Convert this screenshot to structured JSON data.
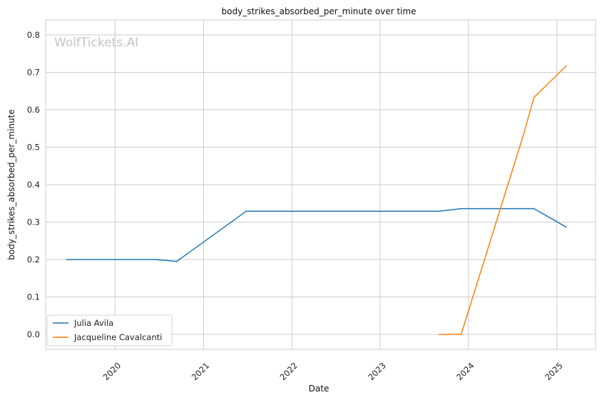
{
  "chart_data": {
    "type": "line",
    "title": "body_strikes_absorbed_per_minute over time",
    "xlabel": "Date",
    "ylabel": "body_strikes_absorbed_per_minute",
    "x_type": "date",
    "xlim": [
      "2019-03-20",
      "2025-06-10"
    ],
    "ylim": [
      -0.04,
      0.84
    ],
    "x_ticks": [
      "2020",
      "2021",
      "2022",
      "2023",
      "2024",
      "2025"
    ],
    "y_ticks": [
      "0.0",
      "0.1",
      "0.2",
      "0.3",
      "0.4",
      "0.5",
      "0.6",
      "0.7",
      "0.8"
    ],
    "grid": true,
    "legend_position": "lower-left",
    "watermark": "WolfTickets.AI",
    "series": [
      {
        "name": "Julia Avila",
        "color": "#1f77b4",
        "points": [
          {
            "x": "2019-06-15",
            "y": 0.2
          },
          {
            "x": "2020-06-15",
            "y": 0.2
          },
          {
            "x": "2020-09-12",
            "y": 0.195
          },
          {
            "x": "2021-06-26",
            "y": 0.329
          },
          {
            "x": "2023-09-02",
            "y": 0.329
          },
          {
            "x": "2023-12-02",
            "y": 0.336
          },
          {
            "x": "2024-09-28",
            "y": 0.336
          },
          {
            "x": "2025-02-08",
            "y": 0.287
          }
        ]
      },
      {
        "name": "Jacqueline Cavalcanti",
        "color": "#ff7f0e",
        "points": [
          {
            "x": "2023-09-02",
            "y": 0.0
          },
          {
            "x": "2023-12-02",
            "y": 0.0
          },
          {
            "x": "2024-08-17",
            "y": 0.536
          },
          {
            "x": "2024-09-28",
            "y": 0.633
          },
          {
            "x": "2025-02-08",
            "y": 0.717
          }
        ]
      }
    ]
  }
}
